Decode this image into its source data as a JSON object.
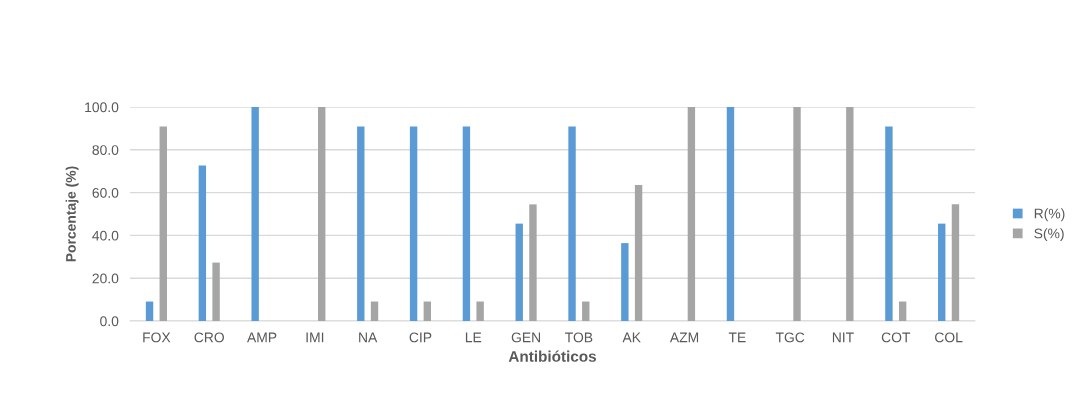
{
  "chart_data": {
    "type": "bar",
    "xlabel": "Antibióticos",
    "ylabel": "Porcentaje (%)",
    "categories": [
      "FOX",
      "CRO",
      "AMP",
      "IMI",
      "NA",
      "CIP",
      "LE",
      "GEN",
      "TOB",
      "AK",
      "AZM",
      "TE",
      "TGC",
      "NIT",
      "COT",
      "COL"
    ],
    "series": [
      {
        "name": "R(%)",
        "color": "#5b9bd5",
        "values": [
          9.1,
          72.7,
          100,
          0,
          90.9,
          90.9,
          90.9,
          45.5,
          90.9,
          36.4,
          0,
          100,
          0,
          0,
          90.9,
          45.5
        ]
      },
      {
        "name": "S(%)",
        "color": "#a5a5a5",
        "values": [
          90.9,
          27.3,
          0,
          100,
          9.1,
          9.1,
          9.1,
          54.5,
          9.1,
          63.6,
          100,
          0,
          100,
          100,
          9.1,
          54.5
        ]
      }
    ],
    "ylim": [
      0,
      100
    ],
    "yticks": [
      {
        "value": 0,
        "label": "0.0"
      },
      {
        "value": 20,
        "label": "20.0"
      },
      {
        "value": 40,
        "label": "40.0"
      },
      {
        "value": 60,
        "label": "60.0"
      },
      {
        "value": 80,
        "label": "80.0"
      },
      {
        "value": 100,
        "label": "100.0"
      }
    ],
    "grid": "y",
    "legend": "right"
  }
}
